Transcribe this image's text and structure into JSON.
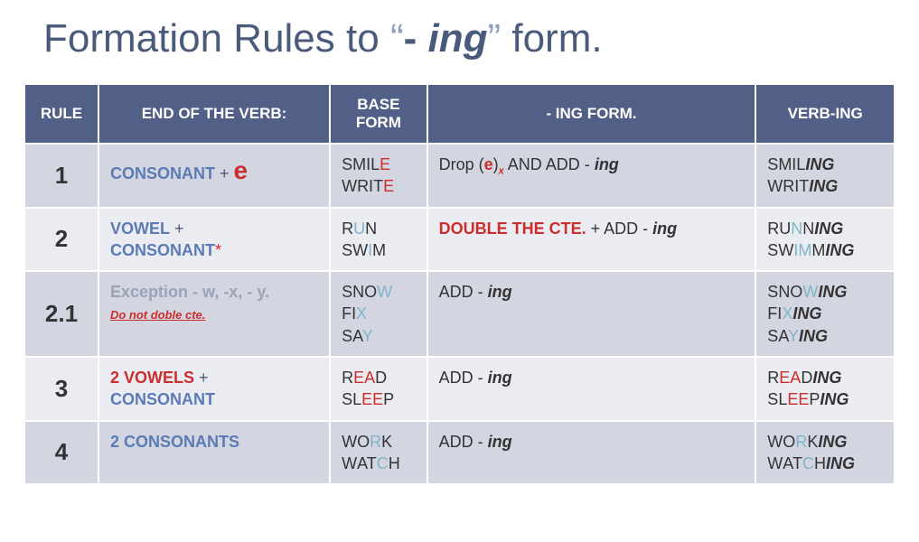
{
  "title": {
    "prefix": "Formation Rules to ",
    "open_quote": "“",
    "dash": "- ",
    "ing": "ing",
    "close_quote": "”",
    "suffix": " form."
  },
  "headers": {
    "rule": "RULE",
    "end": "END OF THE VERB:",
    "base": "BASE FORM",
    "ing": "- ING FORM.",
    "verbing": "VERB-ING"
  },
  "rows": {
    "r1": {
      "num": "1",
      "end_consonant": "CONSONANT",
      "end_plus": " + ",
      "end_e": "e",
      "base_smil": "SMIL",
      "base_smil_e": "E",
      "base_writ": "WRIT",
      "base_writ_e": "E",
      "rule_drop": "Drop (",
      "rule_e": "e",
      "rule_paren": ")",
      "rule_x": "x",
      "rule_and": " AND ADD - ",
      "rule_ing": "ing",
      "res_smil": "SMIL",
      "res_smil_ing": "ING",
      "res_writ": "WRIT",
      "res_writ_ing": "ING"
    },
    "r2": {
      "num": "2",
      "end_vowel": "VOWEL",
      "end_plus": " +",
      "end_cons": "CONSONANT",
      "end_star": "*",
      "base_r": "R",
      "base_u": "U",
      "base_n": "N",
      "base_sw": "SW",
      "base_i": "I",
      "base_m": "M",
      "rule_double": "DOUBLE THE CTE.",
      "rule_plus": " + ADD - ",
      "rule_ing": "ing",
      "res_ru": "RU",
      "res_n": "N",
      "res_n2": "N",
      "res_ing1": "ING",
      "res_sw": "SW",
      "res_i": "I",
      "res_m": "M",
      "res_m2": "M",
      "res_ing2": "ING"
    },
    "r21": {
      "num": "2.1",
      "exc": "Exception ",
      "wxy": "- w, -x, - y.",
      "note": "Do not doble cte.",
      "base_sno": "SNO",
      "base_w": "W",
      "base_fi": "FI",
      "base_x": "X",
      "base_sa": "SA",
      "base_y": "Y",
      "rule_add": "ADD - ",
      "rule_ing": "ing",
      "res_sno": "SNO",
      "res_w": "W",
      "res_ing1": "ING",
      "res_fi": "FI",
      "res_x": "X",
      "res_ing2": "ING",
      "res_sa": "SA",
      "res_y": "Y",
      "res_ing3": "ING"
    },
    "r3": {
      "num": "3",
      "two_vowels": "2 VOWELS",
      "plus": " +",
      "cons": "CONSONANT",
      "base_r": "R",
      "base_ea": "EA",
      "base_d": "D",
      "base_sl": "SL",
      "base_ee": "EE",
      "base_p": "P",
      "rule_add": "ADD - ",
      "rule_ing": "ing",
      "res_r": "R",
      "res_ea": "EA",
      "res_d": "D",
      "res_ing1": "ING",
      "res_sl": "SL",
      "res_ee": "EE",
      "res_p": "P",
      "res_ing2": "ING"
    },
    "r4": {
      "num": "4",
      "two_cons": "2 CONSONANTS",
      "base_wo": "WO",
      "base_r": "R",
      "base_k": "K",
      "base_wat": "WAT",
      "base_c": "C",
      "base_h": "H",
      "rule_add": "ADD - ",
      "rule_ing": "ing",
      "res_wo": "WO",
      "res_r": "R",
      "res_k": "K",
      "res_ing1": "ING",
      "res_wat": "WAT",
      "res_c": "C",
      "res_h": "H",
      "res_ing2": "ING"
    }
  }
}
